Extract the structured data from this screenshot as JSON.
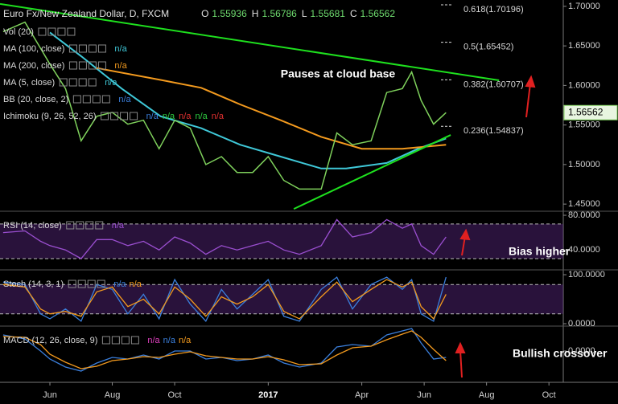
{
  "chart_data": [
    {
      "type": "line",
      "title": "Euro Fx/New Zealand Dollar, D, FXCM",
      "ohlc": [
        {
          "label": "O",
          "value": 1.55936
        },
        {
          "label": "H",
          "value": 1.56786
        },
        {
          "label": "L",
          "value": 1.55681
        },
        {
          "label": "C",
          "value": 1.56562
        }
      ],
      "x": [
        4.5,
        5.2,
        5.7,
        6,
        6.5,
        7,
        7.5,
        8,
        8.5,
        9,
        9.5,
        10,
        10.5,
        11,
        11.5,
        12,
        12.5,
        13,
        13.5,
        14,
        14.7,
        15.2,
        15.7,
        16.3,
        16.8,
        17.3,
        17.6,
        17.9,
        18.3,
        18.7
      ],
      "values": [
        1.668,
        1.68,
        1.647,
        1.627,
        1.596,
        1.53,
        1.561,
        1.566,
        1.551,
        1.556,
        1.52,
        1.556,
        1.546,
        1.5,
        1.51,
        1.49,
        1.49,
        1.51,
        1.48,
        1.469,
        1.469,
        1.54,
        1.525,
        1.53,
        1.591,
        1.596,
        1.617,
        1.581,
        1.551,
        1.56562
      ],
      "color": "#7fd15c",
      "series": [
        {
          "name": "MA (100, close)",
          "color": "#3fc8d8",
          "status": [
            {
              "label": "n/a",
              "color": "#3fc8d8"
            }
          ],
          "x": [
            6,
            7,
            8.3,
            9.55,
            10.85,
            12.1,
            13.4,
            14.7,
            15.5,
            16.8,
            17.8,
            18.7
          ],
          "values": [
            1.667,
            1.637,
            1.596,
            1.561,
            1.546,
            1.525,
            1.51,
            1.495,
            1.495,
            1.502,
            1.52,
            1.533
          ]
        },
        {
          "name": "MA (200, close)",
          "color": "#f39a1e",
          "status": [
            {
              "label": "n/a",
              "color": "#f39a1e"
            }
          ],
          "x": [
            7.5,
            9.55,
            10.85,
            12.1,
            13.4,
            14.7,
            16,
            17.3,
            18.7
          ],
          "values": [
            1.622,
            1.607,
            1.597,
            1.576,
            1.556,
            1.535,
            1.52,
            1.52,
            1.525
          ]
        }
      ],
      "indicators": [
        {
          "name": "Vol (20)",
          "status": []
        },
        {
          "name": "MA (5, close)",
          "status": [
            {
              "label": "n/a",
              "color": "#3fc8d8"
            }
          ]
        },
        {
          "name": "BB (20, close, 2)",
          "status": [
            {
              "label": "n/a",
              "color": "#3b7fdc"
            }
          ]
        },
        {
          "name": "Ichimoku (9, 26, 52, 26)",
          "status": [
            {
              "label": "n/a",
              "color": "#3b7fdc"
            },
            {
              "label": "n/a",
              "color": "#2ecc40"
            },
            {
              "label": "n/a",
              "color": "#e03030"
            },
            {
              "label": "n/a",
              "color": "#2ecc40"
            },
            {
              "label": "n/a",
              "color": "#e03030"
            }
          ]
        }
      ],
      "fib_levels": [
        {
          "label": "0.618(1.70196)",
          "value": 1.70196
        },
        {
          "label": "0.5(1.65452)",
          "value": 1.65452
        },
        {
          "label": "0.382(1.60707)",
          "value": 1.60707
        },
        {
          "label": "0.236(1.54837)",
          "value": 1.54837
        }
      ],
      "trendlines": [
        {
          "x": [
            4.4,
            20.4
          ],
          "y": [
            1.703,
            1.6065
          ],
          "color": "#1ee01e"
        },
        {
          "x": [
            13.82,
            18.85
          ],
          "y": [
            1.4439,
            1.5374
          ],
          "color": "#1ee01e"
        }
      ],
      "annotations": [
        "Pauses at cloud base"
      ],
      "xlim": [
        4.4,
        22.46
      ],
      "ylim": [
        1.442,
        1.708
      ],
      "yticks": [
        {
          "value": 1.45,
          "label": "1.45000"
        },
        {
          "value": 1.5,
          "label": "1.50000"
        },
        {
          "value": 1.55,
          "label": "1.55000"
        },
        {
          "value": 1.6,
          "label": "1.60000"
        },
        {
          "value": 1.65,
          "label": "1.65000"
        },
        {
          "value": 1.7,
          "label": "1.70000"
        }
      ]
    },
    {
      "type": "line",
      "title": "RSI (14, close)",
      "status": [
        {
          "label": "n/a",
          "color": "#9b4fd1"
        }
      ],
      "x": [
        4.5,
        5.2,
        5.7,
        6,
        6.5,
        7,
        7.5,
        8,
        8.5,
        9,
        9.5,
        10,
        10.5,
        11,
        11.5,
        12,
        12.5,
        13,
        13.5,
        14,
        14.7,
        15.2,
        15.7,
        16.3,
        16.8,
        17.3,
        17.6,
        17.9,
        18.3,
        18.7
      ],
      "series": [
        {
          "color": "#9b4fd1",
          "values": [
            60,
            62,
            50,
            45,
            40,
            30,
            52,
            52,
            45,
            50,
            40,
            55,
            48,
            35,
            45,
            40,
            45,
            50,
            40,
            35,
            45,
            75,
            55,
            60,
            75,
            65,
            70,
            45,
            35,
            55
          ]
        }
      ],
      "band": [
        30,
        70
      ],
      "annotations": [
        "Bias higher"
      ],
      "xlim": [
        4.4,
        22.46
      ],
      "ylim": [
        18,
        82.8
      ],
      "yticks": [
        {
          "value": 40,
          "label": "40.0000"
        },
        {
          "value": 80,
          "label": "80.0000"
        }
      ]
    },
    {
      "type": "line",
      "title": "Stoch (14, 3, 1)",
      "status": [
        {
          "label": "n/a",
          "color": "#3b7fdc"
        },
        {
          "label": "n/a",
          "color": "#f39a1e"
        }
      ],
      "x": [
        4.5,
        5.2,
        5.7,
        6,
        6.5,
        7,
        7.5,
        8,
        8.5,
        9,
        9.5,
        10,
        10.5,
        11,
        11.5,
        12,
        12.5,
        13,
        13.5,
        14,
        14.7,
        15.2,
        15.7,
        16.3,
        16.8,
        17.3,
        17.6,
        17.9,
        18.3,
        18.7
      ],
      "series": [
        {
          "color": "#3b7fdc",
          "values": [
            85,
            80,
            20,
            10,
            30,
            5,
            80,
            70,
            20,
            60,
            10,
            90,
            40,
            5,
            70,
            30,
            60,
            90,
            15,
            5,
            70,
            95,
            30,
            80,
            95,
            70,
            90,
            20,
            5,
            95
          ]
        },
        {
          "color": "#f39a1e",
          "values": [
            80,
            75,
            30,
            20,
            25,
            15,
            65,
            75,
            35,
            50,
            20,
            75,
            50,
            15,
            55,
            40,
            55,
            80,
            25,
            10,
            55,
            85,
            45,
            70,
            90,
            75,
            85,
            35,
            10,
            60
          ]
        }
      ],
      "band": [
        20,
        80
      ],
      "xlim": [
        4.4,
        22.46
      ],
      "ylim": [
        -3.3,
        106.6
      ],
      "yticks": [
        {
          "value": 0,
          "label": "0.0000"
        },
        {
          "value": 100,
          "label": "100.0000"
        }
      ]
    },
    {
      "type": "line",
      "title": "MACD (12, 26, close, 9)",
      "status": [
        {
          "label": "n/a",
          "color": "#e040c0"
        },
        {
          "label": "n/a",
          "color": "#3b7fdc"
        },
        {
          "label": "n/a",
          "color": "#f39a1e"
        }
      ],
      "x": [
        4.5,
        5.2,
        5.7,
        6,
        6.5,
        7,
        7.5,
        8,
        8.5,
        9,
        9.5,
        10,
        10.5,
        11,
        11.5,
        12,
        12.5,
        13,
        13.5,
        14,
        14.7,
        15.2,
        15.7,
        16.3,
        16.8,
        17.3,
        17.6,
        17.9,
        18.3,
        18.7
      ],
      "series": [
        {
          "color": "#3b7fdc",
          "values": [
            0.02,
            0.015,
            0,
            -0.01,
            -0.02,
            -0.025,
            -0.015,
            -0.008,
            -0.01,
            -0.005,
            -0.01,
            0,
            0,
            -0.01,
            -0.008,
            -0.012,
            -0.01,
            -0.005,
            -0.015,
            -0.02,
            -0.015,
            0.005,
            0.008,
            0.006,
            0.02,
            0.025,
            0.028,
            0.01,
            -0.01,
            -0.008
          ]
        },
        {
          "color": "#f39a1e",
          "values": [
            0.018,
            0.017,
            0.008,
            -0.004,
            -0.014,
            -0.022,
            -0.019,
            -0.012,
            -0.01,
            -0.007,
            -0.008,
            -0.004,
            -0.001,
            -0.006,
            -0.008,
            -0.01,
            -0.01,
            -0.007,
            -0.011,
            -0.017,
            -0.016,
            -0.005,
            0.004,
            0.006,
            0.014,
            0.021,
            0.025,
            0.017,
            0.002,
            -0.012
          ]
        }
      ],
      "annotations": [
        "Bullish crossover"
      ],
      "xlim": [
        4.4,
        22.46
      ],
      "ylim": [
        -0.038,
        0.029
      ],
      "yticks": [
        {
          "value": 0,
          "label": "0.0000"
        }
      ],
      "xticks": [
        {
          "value": 6,
          "label": "Jun"
        },
        {
          "value": 8,
          "label": "Aug"
        },
        {
          "value": 10,
          "label": "Oct"
        },
        {
          "value": 13,
          "label": "2017"
        },
        {
          "value": 16,
          "label": "Apr"
        },
        {
          "value": 18,
          "label": "Jun"
        },
        {
          "value": 20,
          "label": "Aug"
        },
        {
          "value": 22,
          "label": "Oct"
        }
      ]
    }
  ]
}
